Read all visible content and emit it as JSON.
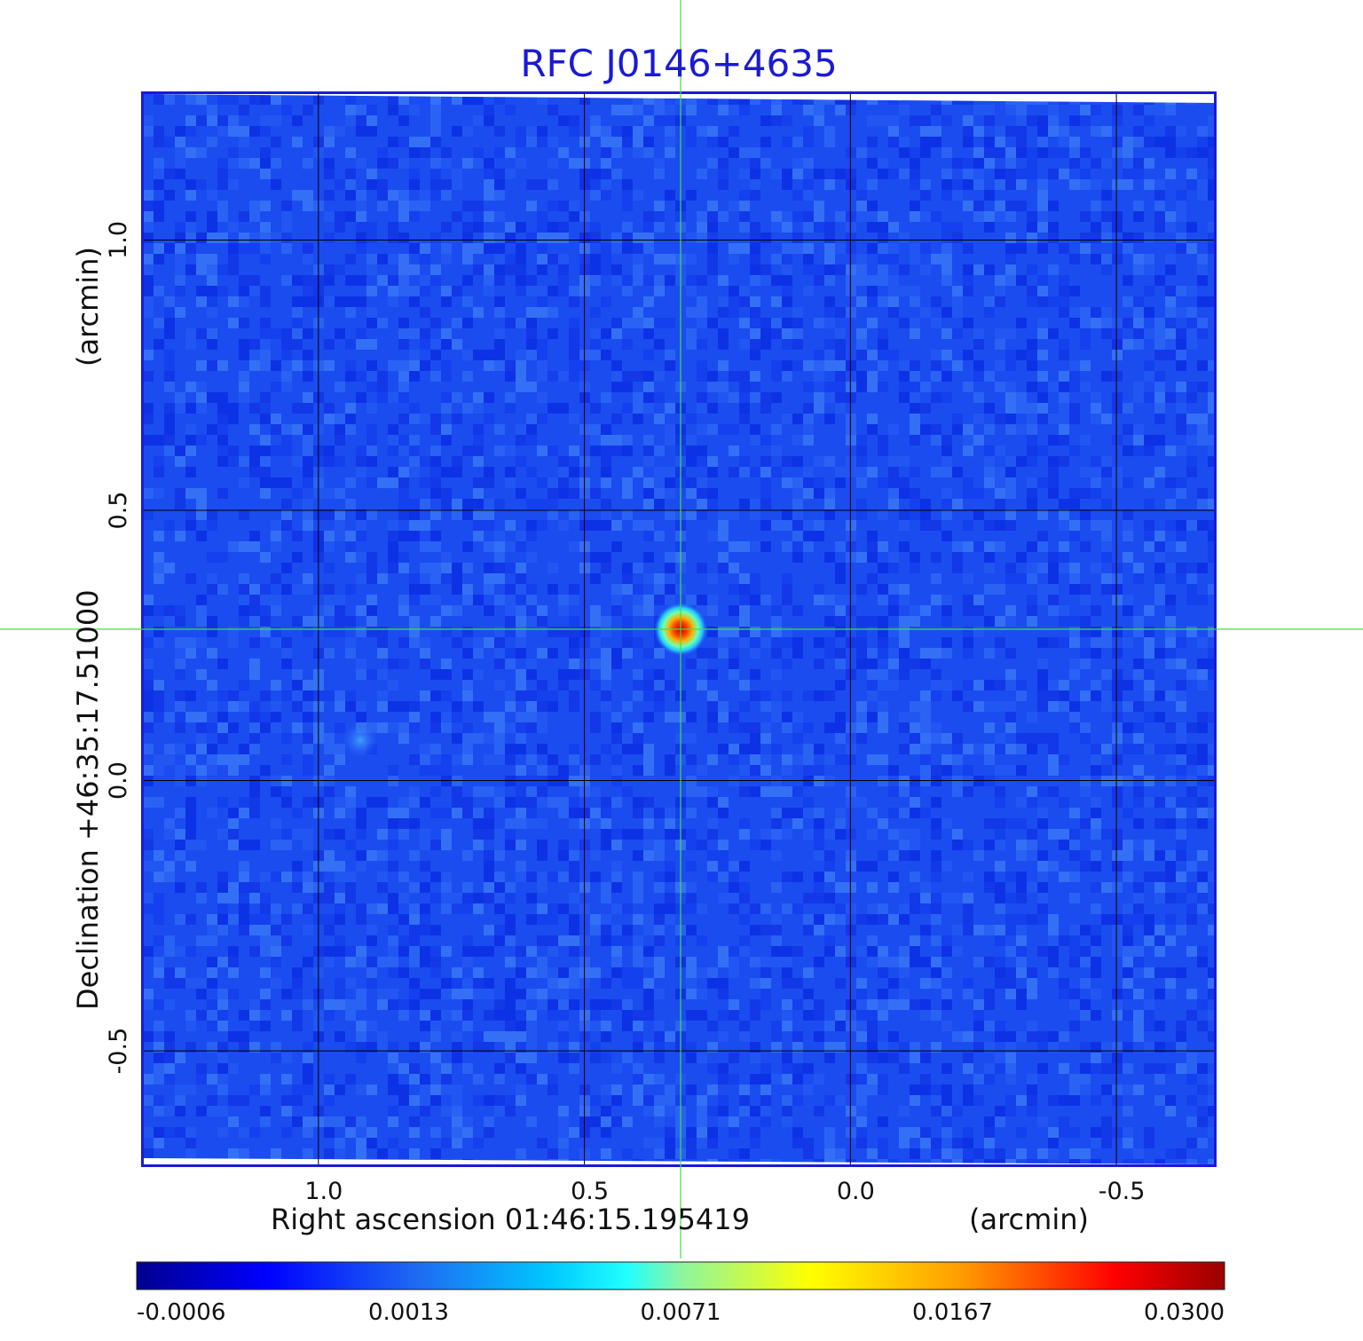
{
  "chart_data": {
    "type": "heatmap",
    "title": "RFC J0146+4635",
    "xlabel": "Right ascension  01:46:15.195419",
    "xunit": "(arcmin)",
    "ylabel": "Declination  +46:35:17.51000",
    "yunit": "(arcmin)",
    "xlim": [
      1.33,
      -0.685
    ],
    "ylim": [
      -0.71,
      1.27
    ],
    "xticks": [
      1.0,
      0.5,
      0.0,
      -0.5
    ],
    "xtick_labels": [
      "1.0",
      "0.5",
      "0.0",
      "-0.5"
    ],
    "yticks": [
      -0.5,
      0.0,
      0.5,
      1.0
    ],
    "ytick_labels": [
      "-0.5",
      "0.0",
      "0.5",
      "1.0"
    ],
    "grid": true,
    "crosshair": {
      "x": 0.32,
      "y": 0.295
    },
    "colorbar": {
      "labels": [
        "-0.0006",
        "0.0013",
        "0.0071",
        "0.0167",
        "0.0300"
      ],
      "colormap": "jet"
    },
    "features": [
      {
        "type": "point-source",
        "x": 0.32,
        "y": 0.295,
        "peak": 0.03
      },
      {
        "type": "faint-source",
        "x": 0.92,
        "y": 0.08,
        "peak": 0.0015
      }
    ],
    "background_level": 0.0002
  },
  "colors": {
    "title": "#1a1ad6",
    "frame": "#1a1ad6",
    "crosshair": "#3ee03e",
    "grid": "#000000",
    "background_blue": "#1b4cf0"
  }
}
